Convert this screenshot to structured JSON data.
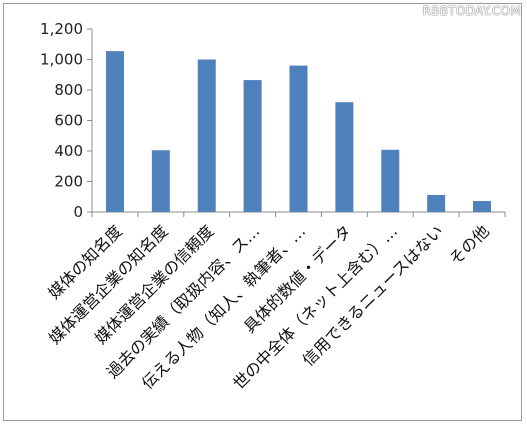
{
  "watermark": "RBBTODAY.COM",
  "chart_data": {
    "type": "bar",
    "categories": [
      "媒体の知名度",
      "媒体運営企業の知名度",
      "媒体運営企業の信頼度",
      "過去の実績（取扱内容、ス…",
      "伝える人物（知人、執筆者、…",
      "具体的数値・データ",
      "世の中全体（ネット上含む）…",
      "信用できるニュースはない",
      "その他"
    ],
    "values": [
      1055,
      405,
      1000,
      865,
      960,
      720,
      408,
      112,
      72
    ],
    "yticks": [
      "1,200",
      "1,000",
      "800",
      "600",
      "400",
      "200",
      "0"
    ],
    "ylim": [
      0,
      1200
    ],
    "grid": false,
    "bar_color": "#4f81bd",
    "title": "",
    "xlabel": "",
    "ylabel": ""
  }
}
